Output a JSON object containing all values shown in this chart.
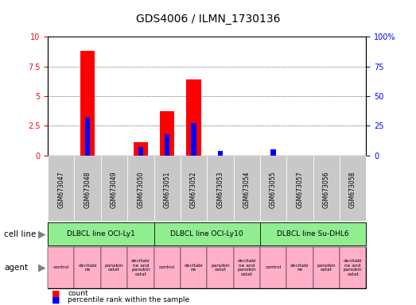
{
  "title": "GDS4006 / ILMN_1730136",
  "samples": [
    "GSM673047",
    "GSM673048",
    "GSM673049",
    "GSM673050",
    "GSM673051",
    "GSM673052",
    "GSM673053",
    "GSM673054",
    "GSM673055",
    "GSM673057",
    "GSM673056",
    "GSM673058"
  ],
  "count_values": [
    0,
    8.8,
    0,
    1.1,
    3.7,
    6.4,
    0,
    0,
    0,
    0,
    0,
    0
  ],
  "percentile_values": [
    0,
    32,
    0,
    7,
    18,
    27,
    4,
    0,
    5,
    0,
    0,
    0
  ],
  "ylim_left": [
    0,
    10
  ],
  "ylim_right": [
    0,
    100
  ],
  "yticks_left": [
    0,
    2.5,
    5,
    7.5,
    10
  ],
  "yticks_right": [
    0,
    25,
    50,
    75,
    100
  ],
  "cell_lines": [
    {
      "label": "DLBCL line OCI-Ly1",
      "start": 1,
      "end": 4,
      "color": "#90EE90"
    },
    {
      "label": "DLBCL line OCI-Ly10",
      "start": 5,
      "end": 8,
      "color": "#90EE90"
    },
    {
      "label": "DLBCL line Su-DHL6",
      "start": 9,
      "end": 12,
      "color": "#90EE90"
    }
  ],
  "agents": [
    {
      "label": "control",
      "idx": 1
    },
    {
      "label": "decitabi\nne",
      "idx": 2
    },
    {
      "label": "panobin\nostat",
      "idx": 3
    },
    {
      "label": "decitabi\nne and\npanobin\nostat",
      "idx": 4
    },
    {
      "label": "control",
      "idx": 5
    },
    {
      "label": "decitabi\nne",
      "idx": 6
    },
    {
      "label": "panobin\nostat",
      "idx": 7
    },
    {
      "label": "decitabi\nne and\npanobin\nostat",
      "idx": 8
    },
    {
      "label": "control",
      "idx": 9
    },
    {
      "label": "decitabi\nne",
      "idx": 10
    },
    {
      "label": "panobin\nostat",
      "idx": 11
    },
    {
      "label": "decitabi\nne and\npanobin\nostat",
      "idx": 12
    }
  ],
  "count_color": "#FF0000",
  "percentile_color": "#0000FF",
  "grid_color": "#000000",
  "tick_color_left": "#FF0000",
  "tick_color_right": "#0000FF",
  "sample_bg_color": "#C8C8C8",
  "cell_line_color": "#90EE90",
  "agent_color": "#FFB0C8",
  "cell_line_label_color": "#000000",
  "agent_label_color": "#000000"
}
